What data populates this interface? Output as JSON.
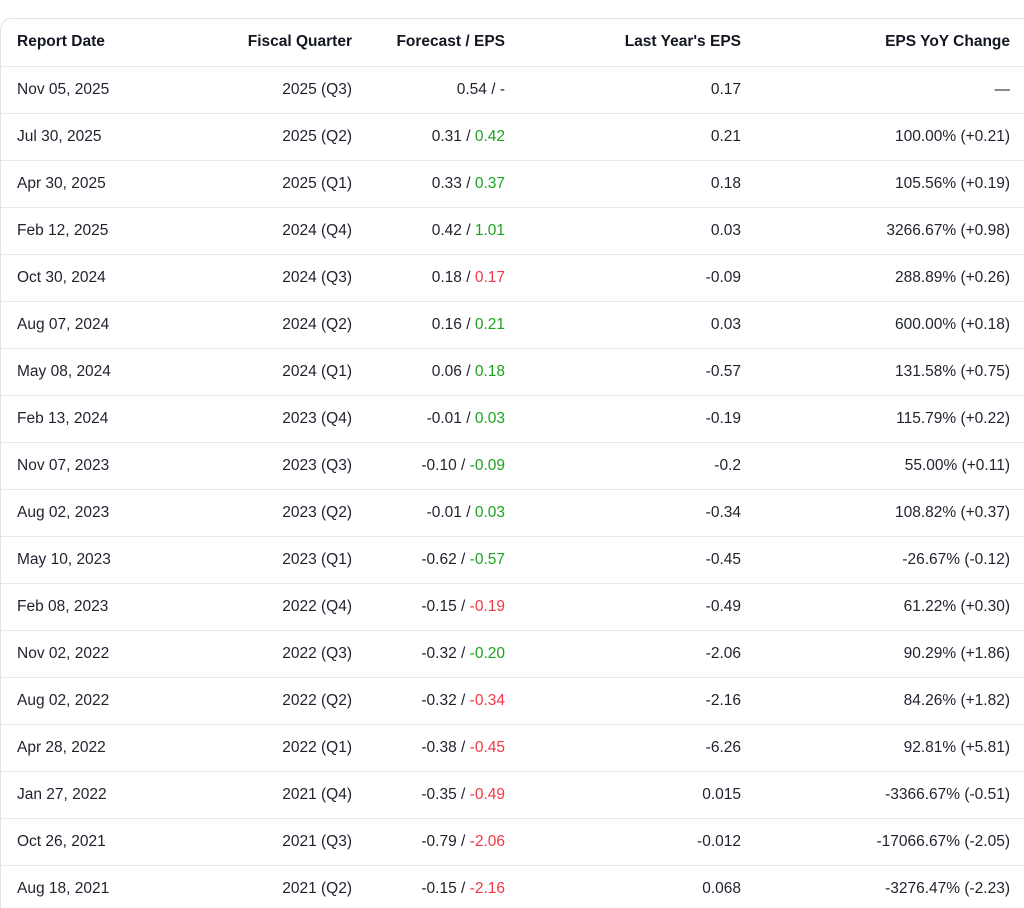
{
  "colors": {
    "positive": "#1ca31f",
    "negative": "#f23645",
    "neutral": "#1e222d",
    "header_text": "#131722",
    "body_text": "#1e222d",
    "border": "#e0e3eb",
    "row_divider": "#e6e8ee",
    "background": "#ffffff"
  },
  "table": {
    "forecast_separator": " / ",
    "columns": [
      {
        "label": "Report Date"
      },
      {
        "label": "Fiscal Quarter"
      },
      {
        "label": "Forecast / EPS"
      },
      {
        "label": "Last Year's EPS"
      },
      {
        "label": "EPS YoY Change"
      }
    ],
    "rows": [
      {
        "report_date": "Nov 05, 2025",
        "fiscal_quarter": "2025 (Q3)",
        "forecast": "0.54",
        "eps": "-",
        "eps_trend": "neutral",
        "last_year_eps": "0.17",
        "yoy_change": "—"
      },
      {
        "report_date": "Jul 30, 2025",
        "fiscal_quarter": "2025 (Q2)",
        "forecast": "0.31",
        "eps": "0.42",
        "eps_trend": "positive",
        "last_year_eps": "0.21",
        "yoy_change": "100.00% (+0.21)"
      },
      {
        "report_date": "Apr 30, 2025",
        "fiscal_quarter": "2025 (Q1)",
        "forecast": "0.33",
        "eps": "0.37",
        "eps_trend": "positive",
        "last_year_eps": "0.18",
        "yoy_change": "105.56% (+0.19)"
      },
      {
        "report_date": "Feb 12, 2025",
        "fiscal_quarter": "2024 (Q4)",
        "forecast": "0.42",
        "eps": "1.01",
        "eps_trend": "positive",
        "last_year_eps": "0.03",
        "yoy_change": "3266.67% (+0.98)"
      },
      {
        "report_date": "Oct 30, 2024",
        "fiscal_quarter": "2024 (Q3)",
        "forecast": "0.18",
        "eps": "0.17",
        "eps_trend": "negative",
        "last_year_eps": "-0.09",
        "yoy_change": "288.89% (+0.26)"
      },
      {
        "report_date": "Aug 07, 2024",
        "fiscal_quarter": "2024 (Q2)",
        "forecast": "0.16",
        "eps": "0.21",
        "eps_trend": "positive",
        "last_year_eps": "0.03",
        "yoy_change": "600.00% (+0.18)"
      },
      {
        "report_date": "May 08, 2024",
        "fiscal_quarter": "2024 (Q1)",
        "forecast": "0.06",
        "eps": "0.18",
        "eps_trend": "positive",
        "last_year_eps": "-0.57",
        "yoy_change": "131.58% (+0.75)"
      },
      {
        "report_date": "Feb 13, 2024",
        "fiscal_quarter": "2023 (Q4)",
        "forecast": "-0.01",
        "eps": "0.03",
        "eps_trend": "positive",
        "last_year_eps": "-0.19",
        "yoy_change": "115.79% (+0.22)"
      },
      {
        "report_date": "Nov 07, 2023",
        "fiscal_quarter": "2023 (Q3)",
        "forecast": "-0.10",
        "eps": "-0.09",
        "eps_trend": "positive",
        "last_year_eps": "-0.2",
        "yoy_change": "55.00% (+0.11)"
      },
      {
        "report_date": "Aug 02, 2023",
        "fiscal_quarter": "2023 (Q2)",
        "forecast": "-0.01",
        "eps": "0.03",
        "eps_trend": "positive",
        "last_year_eps": "-0.34",
        "yoy_change": "108.82% (+0.37)"
      },
      {
        "report_date": "May 10, 2023",
        "fiscal_quarter": "2023 (Q1)",
        "forecast": "-0.62",
        "eps": "-0.57",
        "eps_trend": "positive",
        "last_year_eps": "-0.45",
        "yoy_change": "-26.67% (-0.12)"
      },
      {
        "report_date": "Feb 08, 2023",
        "fiscal_quarter": "2022 (Q4)",
        "forecast": "-0.15",
        "eps": "-0.19",
        "eps_trend": "negative",
        "last_year_eps": "-0.49",
        "yoy_change": "61.22% (+0.30)"
      },
      {
        "report_date": "Nov 02, 2022",
        "fiscal_quarter": "2022 (Q3)",
        "forecast": "-0.32",
        "eps": "-0.20",
        "eps_trend": "positive",
        "last_year_eps": "-2.06",
        "yoy_change": "90.29% (+1.86)"
      },
      {
        "report_date": "Aug 02, 2022",
        "fiscal_quarter": "2022 (Q2)",
        "forecast": "-0.32",
        "eps": "-0.34",
        "eps_trend": "negative",
        "last_year_eps": "-2.16",
        "yoy_change": "84.26% (+1.82)"
      },
      {
        "report_date": "Apr 28, 2022",
        "fiscal_quarter": "2022 (Q1)",
        "forecast": "-0.38",
        "eps": "-0.45",
        "eps_trend": "negative",
        "last_year_eps": "-6.26",
        "yoy_change": "92.81% (+5.81)"
      },
      {
        "report_date": "Jan 27, 2022",
        "fiscal_quarter": "2021 (Q4)",
        "forecast": "-0.35",
        "eps": "-0.49",
        "eps_trend": "negative",
        "last_year_eps": "0.015",
        "yoy_change": "-3366.67% (-0.51)"
      },
      {
        "report_date": "Oct 26, 2021",
        "fiscal_quarter": "2021 (Q3)",
        "forecast": "-0.79",
        "eps": "-2.06",
        "eps_trend": "negative",
        "last_year_eps": "-0.012",
        "yoy_change": "-17066.67% (-2.05)"
      },
      {
        "report_date": "Aug 18, 2021",
        "fiscal_quarter": "2021 (Q2)",
        "forecast": "-0.15",
        "eps": "-2.16",
        "eps_trend": "negative",
        "last_year_eps": "0.068",
        "yoy_change": "-3276.47% (-2.23)"
      }
    ]
  }
}
